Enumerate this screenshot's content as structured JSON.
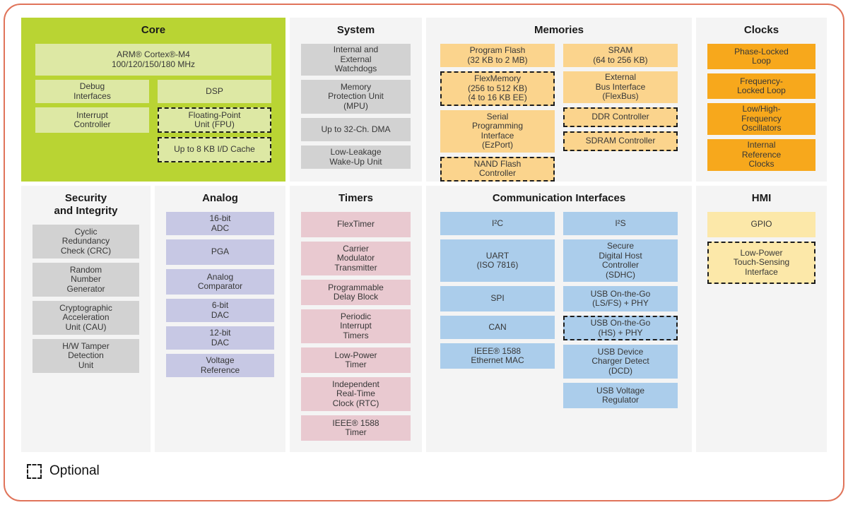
{
  "colors": {
    "frame_border": "#e0745a",
    "panel_bg": "#f4f4f4",
    "core_bg": "#b9d433",
    "core_block": "#dde8a4",
    "system_block": "#d2d2d2",
    "memories_block": "#fbd48d",
    "clocks_block": "#f7a81c",
    "analog_block": "#c7c8e4",
    "timers_block": "#e9c9d0",
    "comm_block": "#abcdeb",
    "hmi_block": "#fce8a9",
    "optional_border": "#1c1c1c"
  },
  "legend": {
    "label": "Optional"
  },
  "sections": {
    "core": {
      "title": "Core",
      "blocks": [
        {
          "label": "ARM® Cortex®-M4\n100/120/150/180 MHz"
        },
        {
          "label": "Debug\nInterfaces"
        },
        {
          "label": "DSP"
        },
        {
          "label": "Interrupt\nController"
        },
        {
          "label": "Floating-Point\nUnit (FPU)",
          "optional": true
        },
        {
          "label": "Up to 8 KB I/D Cache",
          "optional": true
        }
      ]
    },
    "system": {
      "title": "System",
      "blocks": [
        {
          "label": "Internal and\nExternal\nWatchdogs"
        },
        {
          "label": "Memory\nProtection Unit\n(MPU)"
        },
        {
          "label": "Up to 32-Ch. DMA"
        },
        {
          "label": "Low-Leakage\nWake-Up Unit"
        }
      ]
    },
    "memories": {
      "title": "Memories",
      "columns": [
        {
          "blocks": [
            {
              "label": "Program Flash\n(32 KB to 2 MB)"
            },
            {
              "label": "FlexMemory\n(256 to 512 KB)\n(4 to 16 KB EE)",
              "optional": true
            },
            {
              "label": "Serial\nProgramming\nInterface\n(EzPort)"
            },
            {
              "label": "NAND Flash\nController",
              "optional": true
            }
          ]
        },
        {
          "blocks": [
            {
              "label": "SRAM\n(64 to 256 KB)"
            },
            {
              "label": "External\nBus Interface\n(FlexBus)"
            },
            {
              "label": "DDR Controller",
              "optional": true
            },
            {
              "label": "SDRAM Controller",
              "optional": true
            }
          ]
        }
      ]
    },
    "clocks": {
      "title": "Clocks",
      "blocks": [
        {
          "label": "Phase-Locked\nLoop"
        },
        {
          "label": "Frequency-\nLocked Loop"
        },
        {
          "label": "Low/High-\nFrequency\nOscillators"
        },
        {
          "label": "Internal\nReference\nClocks"
        }
      ]
    },
    "security": {
      "title": "Security\nand Integrity",
      "blocks": [
        {
          "label": "Cyclic\nRedundancy\nCheck (CRC)"
        },
        {
          "label": "Random\nNumber\nGenerator"
        },
        {
          "label": "Cryptographic\nAcceleration\nUnit (CAU)"
        },
        {
          "label": "H/W Tamper\nDetection\nUnit"
        }
      ]
    },
    "analog": {
      "title": "Analog",
      "blocks": [
        {
          "label": "16-bit\nADC"
        },
        {
          "label": "PGA"
        },
        {
          "label": "Analog\nComparator"
        },
        {
          "label": "6-bit\nDAC"
        },
        {
          "label": "12-bit\nDAC"
        },
        {
          "label": "Voltage\nReference"
        }
      ]
    },
    "timers": {
      "title": "Timers",
      "blocks": [
        {
          "label": "FlexTimer"
        },
        {
          "label": "Carrier\nModulator\nTransmitter"
        },
        {
          "label": "Programmable\nDelay Block"
        },
        {
          "label": "Periodic\nInterrupt\nTimers"
        },
        {
          "label": "Low-Power\nTimer"
        },
        {
          "label": "Independent\nReal-Time\nClock (RTC)"
        },
        {
          "label": "IEEE® 1588\nTimer"
        }
      ]
    },
    "comm": {
      "title": "Communication Interfaces",
      "columns": [
        {
          "blocks": [
            {
              "label": "I²C"
            },
            {
              "label": "UART\n(ISO 7816)"
            },
            {
              "label": "SPI"
            },
            {
              "label": "CAN"
            },
            {
              "label": "IEEE® 1588\nEthernet MAC"
            }
          ]
        },
        {
          "blocks": [
            {
              "label": "I²S"
            },
            {
              "label": "Secure\nDigital Host\nController\n(SDHC)"
            },
            {
              "label": "USB On-the-Go\n(LS/FS) + PHY"
            },
            {
              "label": "USB On-the-Go\n(HS) + PHY",
              "optional": true
            },
            {
              "label": "USB Device\nCharger Detect\n(DCD)"
            },
            {
              "label": "USB Voltage\nRegulator"
            }
          ]
        }
      ]
    },
    "hmi": {
      "title": "HMI",
      "blocks": [
        {
          "label": "GPIO"
        },
        {
          "label": "Low-Power\nTouch-Sensing\nInterface",
          "optional": true
        }
      ]
    }
  }
}
